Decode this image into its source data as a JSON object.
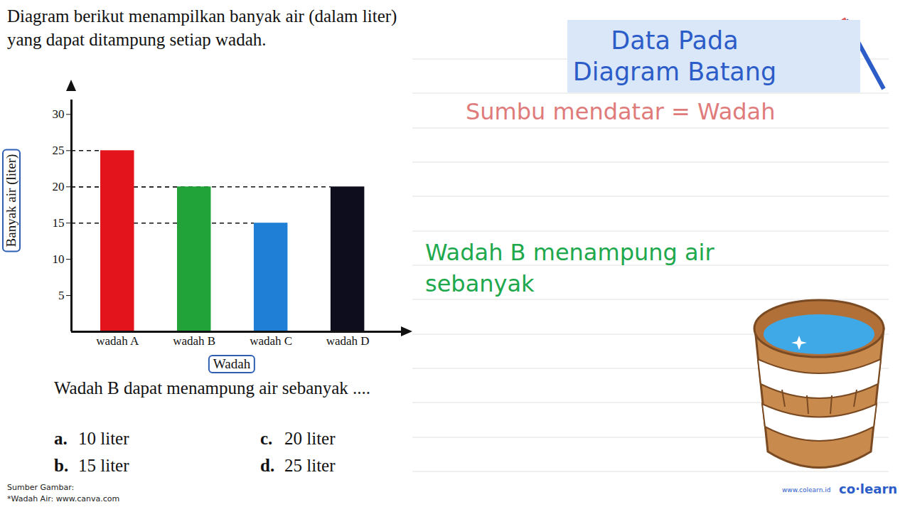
{
  "chart_data": {
    "type": "bar",
    "categories": [
      "wadah A",
      "wadah B",
      "wadah C",
      "wadah D"
    ],
    "values": [
      25,
      20,
      15,
      20
    ],
    "colors": [
      "#e3141c",
      "#22a33a",
      "#1f7fd6",
      "#0d0d1e"
    ],
    "x_label": "Wadah",
    "y_label": "Banyak air (liter)",
    "ylim": [
      0,
      32
    ],
    "yticks": [
      5,
      10,
      15,
      20,
      25,
      30
    ],
    "grid": false
  },
  "question": {
    "intro": "Diagram berikut menampilkan banyak air (dalam liter) yang dapat ditampung setiap wadah.",
    "prompt": "Wadah B dapat menampung air sebanyak ....",
    "options": [
      {
        "letter": "a.",
        "text": "10 liter"
      },
      {
        "letter": "b.",
        "text": "15 liter"
      },
      {
        "letter": "c.",
        "text": "20 liter"
      },
      {
        "letter": "d.",
        "text": "25 liter"
      }
    ]
  },
  "slide": {
    "header": "Data Pada Diagram Batang",
    "axis_note": "Sumbu mendatar = Wadah",
    "answer_prompt": "Wadah B menampung air sebanyak"
  },
  "footer": {
    "source_title": "Sumber Gambar:",
    "source": "*Wadah Air: www.canva.com",
    "site": "www.colearn.id",
    "brand": "co·learn"
  }
}
